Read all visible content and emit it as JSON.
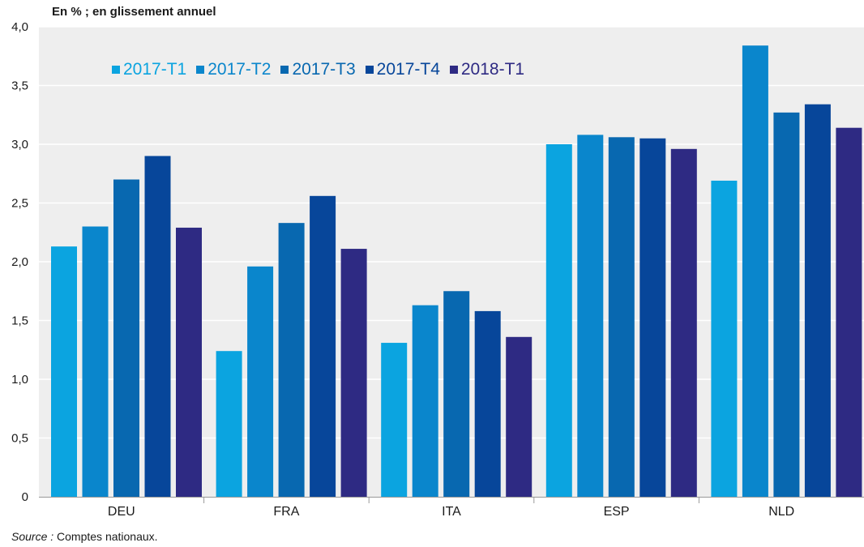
{
  "header": {
    "unit_label": "En % ; en glissement annuel"
  },
  "footer": {
    "source_prefix": "Source :",
    "source_text": " Comptes nationaux."
  },
  "colors": {
    "plot_background": "#eeeeee",
    "gridline": "#ffffff",
    "axis": "#999999",
    "text": "#1a1a1a"
  },
  "chart_data": {
    "type": "bar",
    "title": "",
    "xlabel": "",
    "ylabel": "En % ; en glissement annuel",
    "ylim": [
      0,
      4.0
    ],
    "yticks": [
      0,
      0.5,
      1.0,
      1.5,
      2.0,
      2.5,
      3.0,
      3.5,
      4.0
    ],
    "ytick_labels": [
      "0",
      "0,5",
      "1,0",
      "1,5",
      "2,0",
      "2,5",
      "3,0",
      "3,5",
      "4,0"
    ],
    "grid": true,
    "legend_position": "top-left",
    "categories": [
      "DEU",
      "FRA",
      "ITA",
      "ESP",
      "NLD"
    ],
    "series": [
      {
        "name": "2017-T1",
        "color": "#0ba4e0",
        "values": [
          2.13,
          1.24,
          1.31,
          3.0,
          2.69
        ]
      },
      {
        "name": "2017-T2",
        "color": "#0a86cc",
        "values": [
          2.3,
          1.96,
          1.63,
          3.08,
          3.84
        ]
      },
      {
        "name": "2017-T3",
        "color": "#0868b0",
        "values": [
          2.7,
          2.33,
          1.75,
          3.06,
          3.27
        ]
      },
      {
        "name": "2017-T4",
        "color": "#07469a",
        "values": [
          2.9,
          2.56,
          1.58,
          3.05,
          3.34
        ]
      },
      {
        "name": "2018-T1",
        "color": "#2e2a83",
        "values": [
          2.29,
          2.11,
          1.36,
          2.96,
          3.14
        ]
      }
    ]
  }
}
